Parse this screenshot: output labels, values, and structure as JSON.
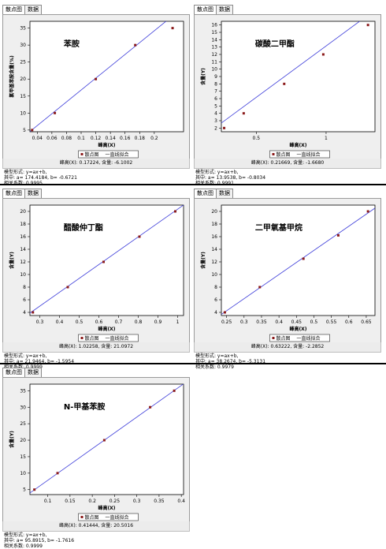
{
  "tabs": {
    "scatter": "散点图",
    "data": "数据"
  },
  "legend": {
    "scatter": "散点图",
    "line": "一直线拟合"
  },
  "chart_data": [
    {
      "type": "scatter",
      "title": "苯胺",
      "xlabel": "峰高(X)",
      "ylabel": "氯甲基苯胺含量(%)",
      "xlim": [
        0.03,
        0.24
      ],
      "ylim": [
        4.5,
        37
      ],
      "xticks": [
        "0.04",
        "0.06",
        "0.08",
        "0.1",
        "0.12",
        "0.14",
        "0.16",
        "0.18",
        "0.2"
      ],
      "xtick_values": [
        0.04,
        0.06,
        0.08,
        0.1,
        0.12,
        0.14,
        0.16,
        0.18,
        0.2
      ],
      "yticks": [
        "5",
        "10",
        "15",
        "20",
        "25",
        "30",
        "35"
      ],
      "ytick_values": [
        5,
        10,
        15,
        20,
        25,
        30,
        35
      ],
      "x": [
        0.033,
        0.064,
        0.12,
        0.174,
        0.225
      ],
      "y": [
        5,
        10,
        20,
        30,
        35
      ],
      "fit": {
        "a": 174.4184,
        "b": -0.6721
      },
      "readout": "峰高(X): 0.17224, 含量: -6.1002",
      "model": "模型形式: y=ax+b,",
      "coef": "其中: a= 174.4184, b= -0.6721",
      "r": "相关系数: 0.9995"
    },
    {
      "type": "scatter",
      "title": "碳酸二甲酯",
      "xlabel": "峰高(X)",
      "ylabel": "含量(Y)",
      "xlim": [
        0.25,
        1.35
      ],
      "ylim": [
        1.5,
        16.5
      ],
      "xticks": [
        "0.5",
        "1"
      ],
      "xtick_values": [
        0.5,
        1
      ],
      "yticks": [
        "2",
        "3",
        "4",
        "5",
        "6",
        "7",
        "8",
        "9",
        "10",
        "11",
        "12",
        "13",
        "14",
        "15",
        "16"
      ],
      "ytick_values": [
        2,
        3,
        4,
        5,
        6,
        7,
        8,
        9,
        10,
        11,
        12,
        13,
        14,
        15,
        16
      ],
      "x": [
        0.27,
        0.41,
        0.7,
        0.98,
        1.3
      ],
      "y": [
        2,
        4,
        8,
        12,
        16
      ],
      "fit": {
        "a": 13.9538,
        "b": -0.8034
      },
      "readout": "峰高(X): 0.21669, 含量: -1.6680",
      "model": "模型形式: y=ax+b,",
      "coef": "其中: a= 13.9538, b= -0.8034",
      "r": "相关系数: 0.9991"
    },
    {
      "type": "scatter",
      "title": "醋酸仲丁酯",
      "xlabel": "峰高(X)",
      "ylabel": "含量(Y)",
      "xlim": [
        0.25,
        1.03
      ],
      "ylim": [
        3.5,
        21
      ],
      "xticks": [
        "0.3",
        "0.4",
        "0.5",
        "0.6",
        "0.7",
        "0.8",
        "0.9",
        "1"
      ],
      "xtick_values": [
        0.3,
        0.4,
        0.5,
        0.6,
        0.7,
        0.8,
        0.9,
        1
      ],
      "yticks": [
        "4",
        "6",
        "8",
        "10",
        "12",
        "14",
        "16",
        "18",
        "20"
      ],
      "ytick_values": [
        4,
        6,
        8,
        10,
        12,
        14,
        16,
        18,
        20
      ],
      "x": [
        0.265,
        0.442,
        0.624,
        0.806,
        0.988
      ],
      "y": [
        4,
        8,
        12,
        16,
        20
      ],
      "fit": {
        "a": 21.9464,
        "b": -1.5954
      },
      "readout": "峰高(X): 1.02258, 含量: 21.0972",
      "model": "模型形式: y=ax+b,",
      "coef": "其中: a= 21.9464, b= -1.5954",
      "r": "相关系数: 0.9999"
    },
    {
      "type": "scatter",
      "title": "二甲氧基甲烷",
      "xlabel": "峰高(X)",
      "ylabel": "含量(Y)",
      "xlim": [
        0.235,
        0.675
      ],
      "ylim": [
        3.5,
        21
      ],
      "xticks": [
        "0.25",
        "0.3",
        "0.35",
        "0.4",
        "0.45",
        "0.5",
        "0.55",
        "0.6",
        "0.65"
      ],
      "xtick_values": [
        0.25,
        0.3,
        0.35,
        0.4,
        0.45,
        0.5,
        0.55,
        0.6,
        0.65
      ],
      "yticks": [
        "4",
        "6",
        "8",
        "10",
        "12",
        "14",
        "16",
        "18",
        "20"
      ],
      "ytick_values": [
        4,
        6,
        8,
        10,
        12,
        14,
        16,
        18,
        20
      ],
      "x": [
        0.245,
        0.345,
        0.47,
        0.57,
        0.655
      ],
      "y": [
        4,
        8,
        12.5,
        16.2,
        20
      ],
      "fit": {
        "a": 38.2674,
        "b": -5.3131
      },
      "readout": "峰高(X): 0.63222, 含量: -2.2852",
      "model": "模型形式: y=ax+b,",
      "coef": "其中: a= 38.2674, b= -5.3131",
      "r": "相关系数: 0.9979"
    },
    {
      "type": "scatter",
      "title": "N-甲基苯胺",
      "xlabel": "峰高(X)",
      "ylabel": "含量(Y)",
      "xlim": [
        0.06,
        0.405
      ],
      "ylim": [
        3.5,
        37
      ],
      "xticks": [
        "0.1",
        "0.15",
        "0.2",
        "0.25",
        "0.3",
        "0.35",
        "0.4"
      ],
      "xtick_values": [
        0.1,
        0.15,
        0.2,
        0.25,
        0.3,
        0.35,
        0.4
      ],
      "yticks": [
        "5",
        "10",
        "15",
        "20",
        "25",
        "30",
        "35"
      ],
      "ytick_values": [
        5,
        10,
        15,
        20,
        25,
        30,
        35
      ],
      "x": [
        0.07,
        0.122,
        0.227,
        0.33,
        0.384
      ],
      "y": [
        5,
        10,
        20,
        30,
        35
      ],
      "fit": {
        "a": 95.8915,
        "b": -1.7616
      },
      "readout": "峰高(X): 0.41444, 含量: 20.5016",
      "model": "模型形式: y=ax+b,",
      "coef": "其中: a= 95.8915, b= -1.7616",
      "r": "相关系数: 0.9999"
    }
  ]
}
